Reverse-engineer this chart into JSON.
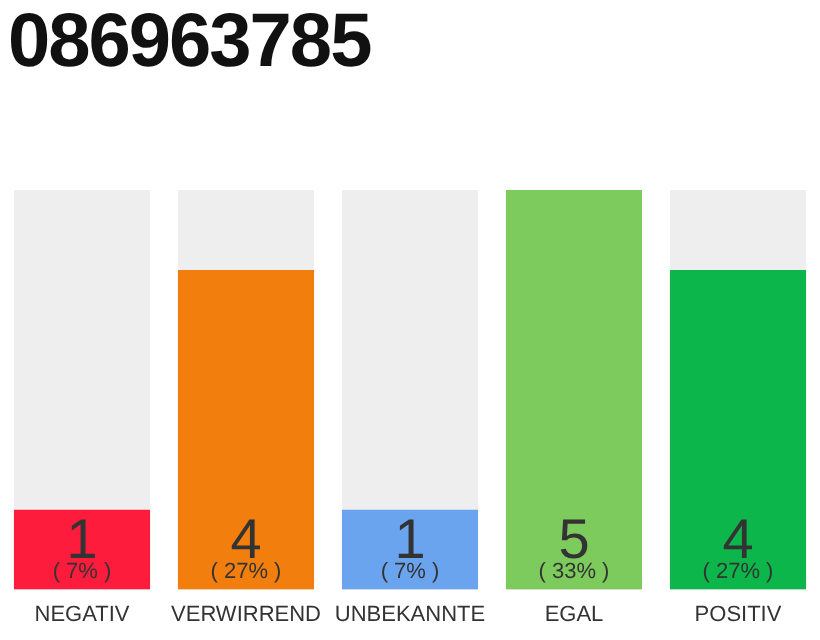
{
  "chart_data": {
    "type": "bar",
    "title": "086963785",
    "categories": [
      "NEGATIV",
      "VERWIRREND",
      "UNBEKANNTE",
      "EGAL",
      "POSITIV"
    ],
    "values": [
      1,
      4,
      1,
      5,
      4
    ],
    "colors": [
      "#fe1c3c",
      "#f27e0e",
      "#6ba4ee",
      "#7dcb5d",
      "#0cb64a"
    ],
    "ylim": [
      0,
      5
    ],
    "data_labels": true,
    "annotations": [
      {
        "text": "( 7% )",
        "x": "NEGATIV",
        "y": 0
      },
      {
        "text": "( 27% )",
        "x": "VERWIRREND",
        "y": 0
      },
      {
        "text": "( 7% )",
        "x": "UNBEKANNTE",
        "y": 0
      },
      {
        "text": "( 33% )",
        "x": "EGAL",
        "y": 0
      },
      {
        "text": "( 27% )",
        "x": "POSITIV",
        "y": 0
      }
    ],
    "grid": false,
    "legend": false
  }
}
